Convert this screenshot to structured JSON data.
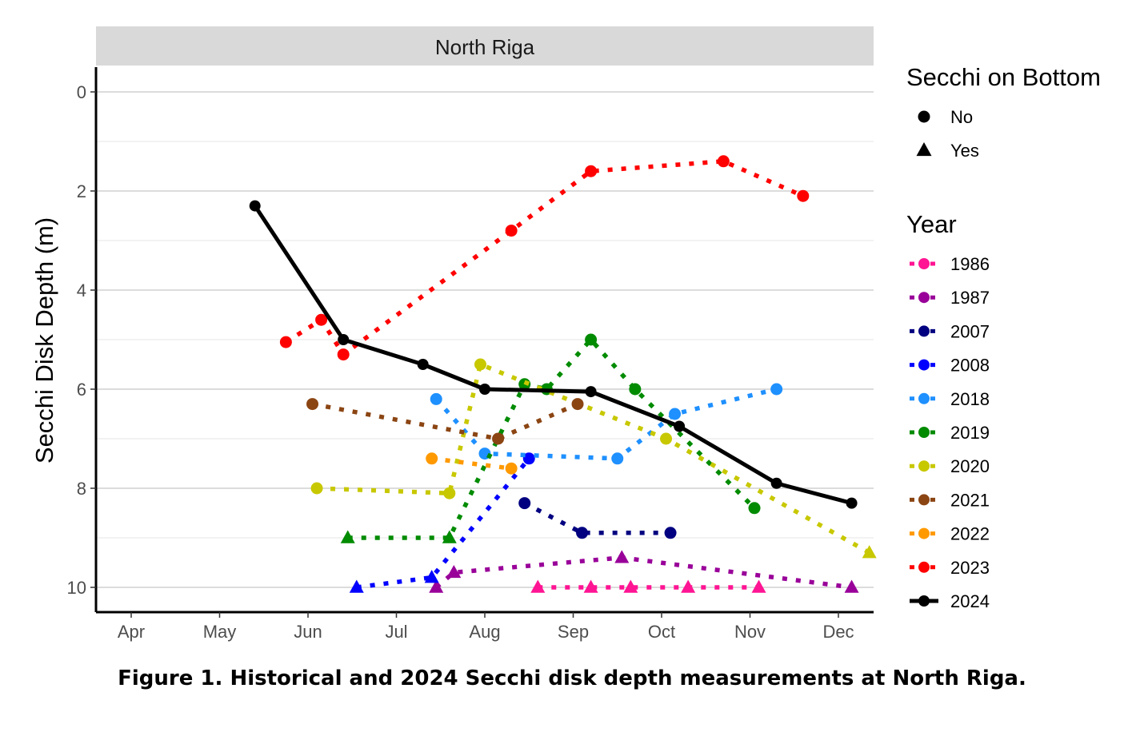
{
  "caption": "Figure 1. Historical and 2024 Secchi disk depth measurements at North Riga.",
  "chart_data": {
    "type": "line",
    "facet_title": "North Riga",
    "xlabel": "",
    "ylabel": "Secchi Disk Depth (m)",
    "x_ticks": [
      "Apr",
      "May",
      "Jun",
      "Jul",
      "Aug",
      "Sep",
      "Oct",
      "Nov",
      "Dec"
    ],
    "x_units": "month (1 = Apr 1)",
    "xlim": [
      0.6,
      9.5
    ],
    "ylim": [
      0,
      10.4
    ],
    "y_reversed": true,
    "y_ticks": [
      0,
      2,
      4,
      6,
      8,
      10
    ],
    "grid": true,
    "legend": {
      "shape_title": "Secchi on Bottom",
      "shape_entries": [
        {
          "label": "No",
          "shape": "circle"
        },
        {
          "label": "Yes",
          "shape": "triangle"
        }
      ],
      "year_title": "Year",
      "placement": "right"
    },
    "series": [
      {
        "name": "1986",
        "color": "#ff1493",
        "style": "dotted",
        "points": [
          [
            5.6,
            10,
            "Yes"
          ],
          [
            6.2,
            10,
            "Yes"
          ],
          [
            6.65,
            10,
            "Yes"
          ],
          [
            7.3,
            10,
            "Yes"
          ],
          [
            8.1,
            10,
            "Yes"
          ]
        ]
      },
      {
        "name": "1987",
        "color": "#990099",
        "style": "dotted",
        "points": [
          [
            4.45,
            10,
            "Yes"
          ],
          [
            4.65,
            9.7,
            "Yes"
          ],
          [
            6.55,
            9.4,
            "Yes"
          ],
          [
            9.15,
            10,
            "Yes"
          ]
        ]
      },
      {
        "name": "2007",
        "color": "#000080",
        "style": "dotted",
        "points": [
          [
            5.45,
            8.3,
            "No"
          ],
          [
            6.1,
            8.9,
            "No"
          ],
          [
            7.1,
            8.9,
            "No"
          ]
        ]
      },
      {
        "name": "2008",
        "color": "#0000ff",
        "style": "dotted",
        "points": [
          [
            3.55,
            10,
            "Yes"
          ],
          [
            4.4,
            9.8,
            "Yes"
          ],
          [
            5.5,
            7.4,
            "No"
          ]
        ]
      },
      {
        "name": "2018",
        "color": "#1e90ff",
        "style": "dotted",
        "points": [
          [
            4.45,
            6.2,
            "No"
          ],
          [
            5.0,
            7.3,
            "No"
          ],
          [
            6.5,
            7.4,
            "No"
          ],
          [
            7.15,
            6.5,
            "No"
          ],
          [
            8.3,
            6.0,
            "No"
          ]
        ]
      },
      {
        "name": "2019",
        "color": "#008b00",
        "style": "dotted",
        "points": [
          [
            3.45,
            9.0,
            "Yes"
          ],
          [
            4.6,
            9.0,
            "Yes"
          ],
          [
            5.45,
            5.9,
            "No"
          ],
          [
            5.7,
            6.0,
            "No"
          ],
          [
            6.2,
            5.0,
            "No"
          ],
          [
            6.7,
            6.0,
            "No"
          ],
          [
            8.05,
            8.4,
            "No"
          ]
        ]
      },
      {
        "name": "2020",
        "color": "#c8c800",
        "style": "dotted",
        "points": [
          [
            3.1,
            8.0,
            "No"
          ],
          [
            4.6,
            8.1,
            "No"
          ],
          [
            4.95,
            5.5,
            "No"
          ],
          [
            7.05,
            7.0,
            "No"
          ],
          [
            9.35,
            9.3,
            "Yes"
          ]
        ]
      },
      {
        "name": "2021",
        "color": "#8b4513",
        "style": "dotted",
        "points": [
          [
            3.05,
            6.3,
            "No"
          ],
          [
            5.15,
            7.0,
            "No"
          ],
          [
            6.05,
            6.3,
            "No"
          ]
        ]
      },
      {
        "name": "2022",
        "color": "#ff9900",
        "style": "dotted",
        "points": [
          [
            4.4,
            7.4,
            "No"
          ],
          [
            5.3,
            7.6,
            "No"
          ]
        ]
      },
      {
        "name": "2023",
        "color": "#ff0000",
        "style": "dotted",
        "points": [
          [
            2.75,
            5.05,
            "No"
          ],
          [
            3.15,
            4.6,
            "No"
          ],
          [
            3.4,
            5.3,
            "No"
          ],
          [
            5.3,
            2.8,
            "No"
          ],
          [
            6.2,
            1.6,
            "No"
          ],
          [
            7.7,
            1.4,
            "No"
          ],
          [
            8.6,
            2.1,
            "No"
          ]
        ]
      },
      {
        "name": "2024",
        "color": "#000000",
        "style": "solid",
        "points": [
          [
            2.4,
            2.3,
            "No"
          ],
          [
            3.4,
            5.0,
            "No"
          ],
          [
            4.3,
            5.5,
            "No"
          ],
          [
            5.0,
            6.0,
            "No"
          ],
          [
            6.2,
            6.05,
            "No"
          ],
          [
            7.2,
            6.75,
            "No"
          ],
          [
            8.3,
            7.9,
            "No"
          ],
          [
            9.15,
            8.3,
            "No"
          ]
        ]
      }
    ]
  }
}
